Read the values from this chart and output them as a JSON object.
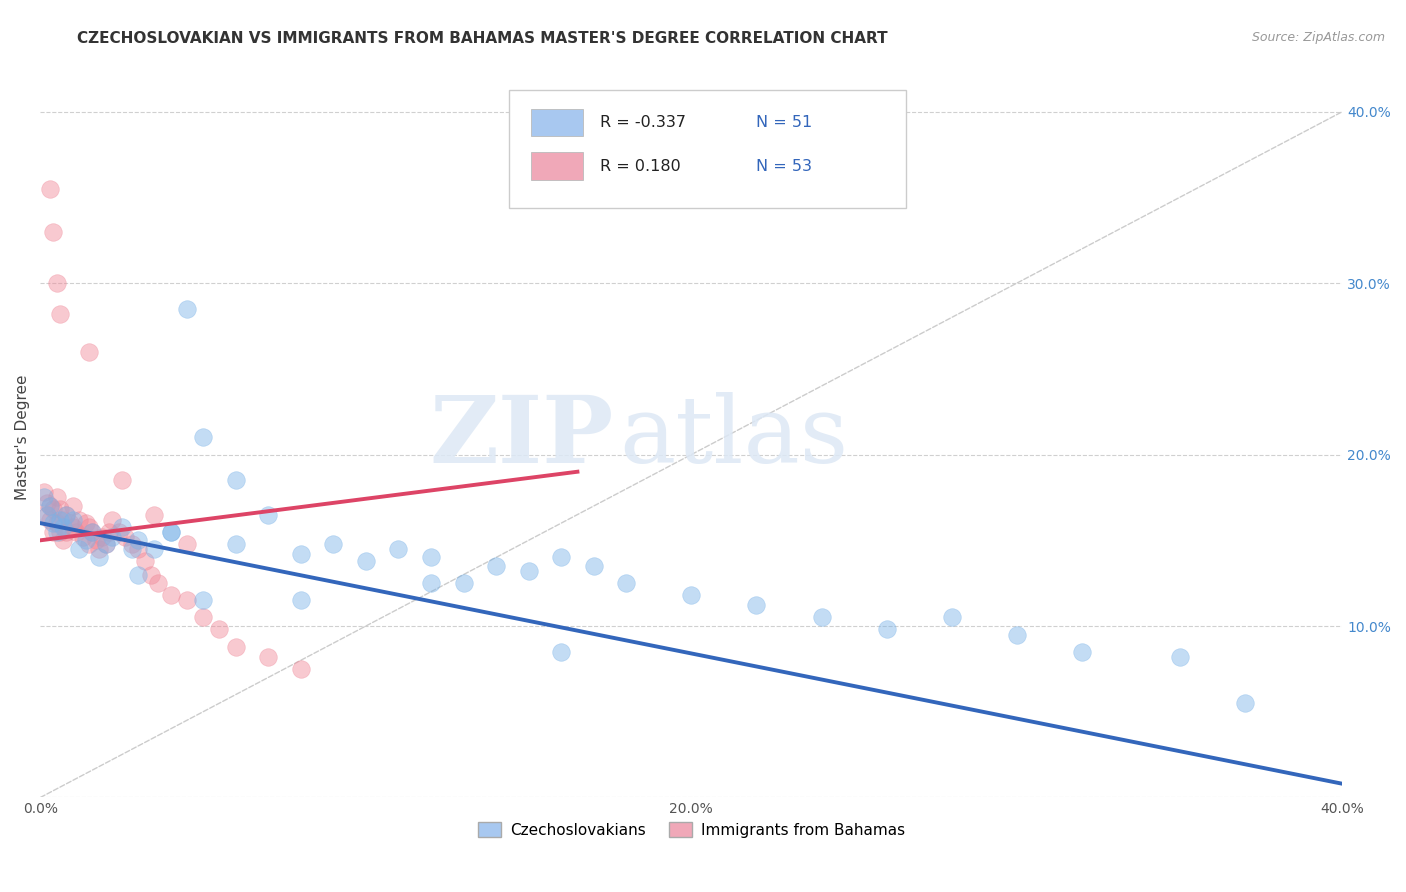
{
  "title": "CZECHOSLOVAKIAN VS IMMIGRANTS FROM BAHAMAS MASTER'S DEGREE CORRELATION CHART",
  "source": "Source: ZipAtlas.com",
  "ylabel": "Master's Degree",
  "xlim": [
    0.0,
    0.4
  ],
  "ylim": [
    0.0,
    0.42
  ],
  "x_ticks": [
    0.0,
    0.1,
    0.2,
    0.3,
    0.4
  ],
  "x_tick_labels": [
    "0.0%",
    "",
    "20.0%",
    "",
    "40.0%"
  ],
  "y_ticks": [
    0.0,
    0.1,
    0.2,
    0.3,
    0.4
  ],
  "y_tick_labels_left": [
    "",
    "",
    "",
    "",
    ""
  ],
  "y_tick_labels_right": [
    "",
    "10.0%",
    "20.0%",
    "30.0%",
    "40.0%"
  ],
  "legend_entries": [
    {
      "label": "Czechoslovakians",
      "color": "#a8c8f0",
      "R": "-0.337",
      "N": "51"
    },
    {
      "label": "Immigrants from Bahamas",
      "color": "#f0a8b8",
      "R": "0.180",
      "N": "53"
    }
  ],
  "blue_scatter_x": [
    0.001,
    0.002,
    0.003,
    0.004,
    0.005,
    0.006,
    0.007,
    0.008,
    0.01,
    0.012,
    0.014,
    0.016,
    0.018,
    0.02,
    0.022,
    0.025,
    0.028,
    0.03,
    0.035,
    0.04,
    0.045,
    0.05,
    0.06,
    0.07,
    0.08,
    0.09,
    0.1,
    0.11,
    0.12,
    0.13,
    0.14,
    0.15,
    0.16,
    0.17,
    0.18,
    0.2,
    0.22,
    0.24,
    0.26,
    0.28,
    0.3,
    0.32,
    0.35,
    0.37,
    0.03,
    0.04,
    0.05,
    0.06,
    0.08,
    0.12,
    0.16
  ],
  "blue_scatter_y": [
    0.175,
    0.165,
    0.17,
    0.16,
    0.155,
    0.162,
    0.158,
    0.165,
    0.162,
    0.145,
    0.15,
    0.155,
    0.14,
    0.148,
    0.152,
    0.158,
    0.145,
    0.15,
    0.145,
    0.155,
    0.285,
    0.21,
    0.185,
    0.165,
    0.142,
    0.148,
    0.138,
    0.145,
    0.14,
    0.125,
    0.135,
    0.132,
    0.14,
    0.135,
    0.125,
    0.118,
    0.112,
    0.105,
    0.098,
    0.105,
    0.095,
    0.085,
    0.082,
    0.055,
    0.13,
    0.155,
    0.115,
    0.148,
    0.115,
    0.125,
    0.085
  ],
  "pink_scatter_x": [
    0.001,
    0.002,
    0.002,
    0.003,
    0.003,
    0.004,
    0.004,
    0.005,
    0.005,
    0.006,
    0.006,
    0.007,
    0.007,
    0.008,
    0.008,
    0.009,
    0.01,
    0.01,
    0.011,
    0.012,
    0.013,
    0.014,
    0.015,
    0.015,
    0.016,
    0.017,
    0.018,
    0.019,
    0.02,
    0.021,
    0.022,
    0.024,
    0.026,
    0.028,
    0.03,
    0.032,
    0.034,
    0.036,
    0.04,
    0.045,
    0.05,
    0.055,
    0.06,
    0.07,
    0.08,
    0.003,
    0.004,
    0.005,
    0.006,
    0.015,
    0.025,
    0.035,
    0.045
  ],
  "pink_scatter_y": [
    0.178,
    0.172,
    0.165,
    0.17,
    0.162,
    0.168,
    0.155,
    0.175,
    0.16,
    0.168,
    0.155,
    0.162,
    0.15,
    0.165,
    0.155,
    0.16,
    0.17,
    0.158,
    0.155,
    0.162,
    0.152,
    0.16,
    0.148,
    0.158,
    0.155,
    0.15,
    0.145,
    0.152,
    0.148,
    0.155,
    0.162,
    0.155,
    0.152,
    0.148,
    0.145,
    0.138,
    0.13,
    0.125,
    0.118,
    0.115,
    0.105,
    0.098,
    0.088,
    0.082,
    0.075,
    0.355,
    0.33,
    0.3,
    0.282,
    0.26,
    0.185,
    0.165,
    0.148
  ],
  "blue_line_x": [
    0.0,
    0.4
  ],
  "blue_line_y": [
    0.16,
    0.008
  ],
  "pink_line_x": [
    0.0,
    0.165
  ],
  "pink_line_y": [
    0.15,
    0.19
  ],
  "diagonal_line_x": [
    0.0,
    0.4
  ],
  "diagonal_line_y": [
    0.0,
    0.4
  ],
  "title_fontsize": 11,
  "tick_fontsize": 10,
  "background_color": "#ffffff",
  "grid_color": "#d0d0d0",
  "blue_color": "#7ab3e8",
  "pink_color": "#f08898",
  "blue_line_color": "#3366bb",
  "pink_line_color": "#dd4466",
  "diagonal_color": "#cccccc",
  "watermark_zip": "ZIP",
  "watermark_atlas": "atlas"
}
